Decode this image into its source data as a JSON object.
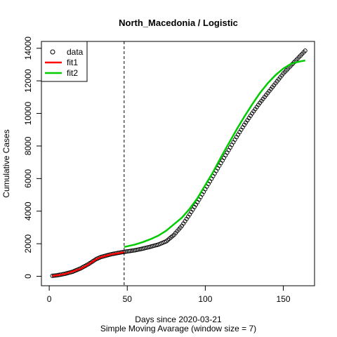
{
  "chart_data": {
    "type": "scatter",
    "title": "North_Macedonia / Logistic",
    "xlabel": "Days since 2020-03-21",
    "subtitle": "Simple Moving Avarage (window size = 7)",
    "ylabel": "Cumulative Cases",
    "xlim": [
      -5,
      170
    ],
    "ylim": [
      -580,
      14420
    ],
    "x_ticks": [
      0,
      50,
      100,
      150
    ],
    "y_ticks": [
      0,
      2000,
      4000,
      6000,
      8000,
      10000,
      12000,
      14000
    ],
    "x_tick_labels": [
      "0",
      "50",
      "100",
      "150"
    ],
    "y_tick_labels": [
      "0",
      "2000",
      "4000",
      "6000",
      "8000",
      "10000",
      "12000",
      "14000"
    ],
    "vline_x": 48,
    "grid": false,
    "legend_position": "top-left",
    "series": [
      {
        "name": "data",
        "kind": "points",
        "color": "#000000",
        "x_range": [
          2,
          164
        ],
        "anchors": [
          [
            2,
            30
          ],
          [
            5,
            60
          ],
          [
            10,
            150
          ],
          [
            15,
            280
          ],
          [
            20,
            480
          ],
          [
            25,
            740
          ],
          [
            30,
            1050
          ],
          [
            33,
            1180
          ],
          [
            36,
            1260
          ],
          [
            40,
            1360
          ],
          [
            45,
            1450
          ],
          [
            48,
            1500
          ],
          [
            55,
            1600
          ],
          [
            60,
            1700
          ],
          [
            65,
            1820
          ],
          [
            70,
            1950
          ],
          [
            75,
            2150
          ],
          [
            80,
            2550
          ],
          [
            85,
            3100
          ],
          [
            90,
            3800
          ],
          [
            95,
            4550
          ],
          [
            100,
            5350
          ],
          [
            105,
            6150
          ],
          [
            110,
            6950
          ],
          [
            115,
            7750
          ],
          [
            120,
            8550
          ],
          [
            125,
            9300
          ],
          [
            130,
            10000
          ],
          [
            135,
            10650
          ],
          [
            140,
            11250
          ],
          [
            145,
            11850
          ],
          [
            150,
            12450
          ],
          [
            155,
            12950
          ],
          [
            160,
            13450
          ],
          [
            164,
            13850
          ]
        ]
      },
      {
        "name": "fit1",
        "kind": "line",
        "color": "#ff0000",
        "anchors": [
          [
            2,
            20
          ],
          [
            10,
            140
          ],
          [
            20,
            460
          ],
          [
            25,
            720
          ],
          [
            30,
            1040
          ],
          [
            33,
            1170
          ],
          [
            36,
            1250
          ],
          [
            40,
            1350
          ],
          [
            45,
            1430
          ],
          [
            48,
            1480
          ]
        ]
      },
      {
        "name": "fit2",
        "kind": "line",
        "color": "#00cc00",
        "anchors": [
          [
            48,
            1800
          ],
          [
            55,
            1950
          ],
          [
            60,
            2100
          ],
          [
            65,
            2280
          ],
          [
            70,
            2500
          ],
          [
            75,
            2800
          ],
          [
            80,
            3200
          ],
          [
            85,
            3600
          ],
          [
            90,
            4150
          ],
          [
            95,
            4800
          ],
          [
            100,
            5600
          ],
          [
            105,
            6400
          ],
          [
            110,
            7300
          ],
          [
            115,
            8150
          ],
          [
            120,
            9000
          ],
          [
            125,
            9800
          ],
          [
            130,
            10550
          ],
          [
            135,
            11250
          ],
          [
            140,
            11850
          ],
          [
            145,
            12350
          ],
          [
            150,
            12750
          ],
          [
            155,
            13050
          ],
          [
            160,
            13180
          ],
          [
            164,
            13250
          ]
        ]
      }
    ]
  }
}
